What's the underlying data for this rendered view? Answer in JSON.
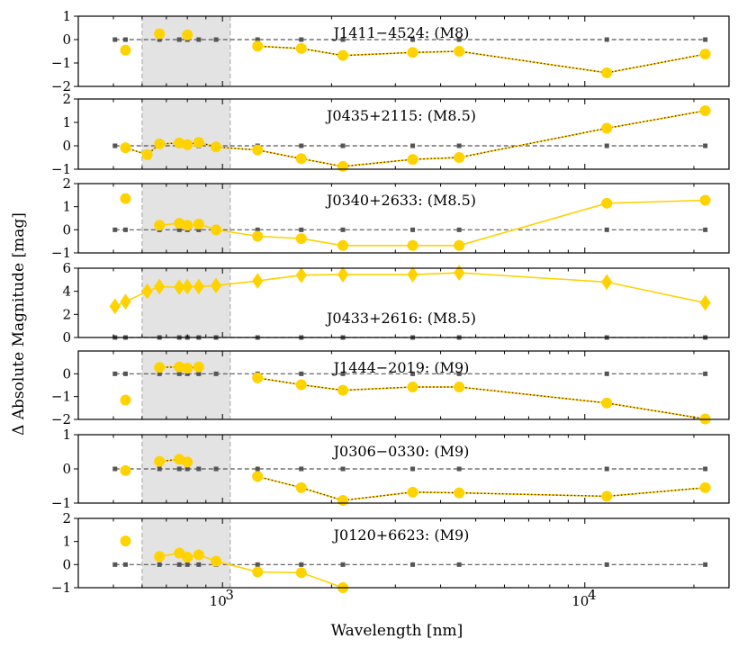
{
  "chart_data": {
    "type": "line",
    "xscale": "log",
    "xlim": [
      400,
      25000
    ],
    "xlabel": "Wavelength [nm]",
    "ylabel": "Δ Absolute Magnitude [mag]",
    "x_ticks": [
      {
        "value": 1000,
        "label": "10",
        "exp": "3"
      },
      {
        "value": 10000,
        "label": "10",
        "exp": "4"
      }
    ],
    "shaded_region": [
      600,
      1050
    ],
    "reference_line": {
      "y": 0,
      "x": [
        505,
        540,
        670,
        760,
        800,
        860,
        960,
        1250,
        1650,
        2150,
        3350,
        4500,
        11500,
        21500
      ]
    },
    "panels": [
      {
        "label": "J1411−4524: (M8)",
        "ylim": [
          -2,
          1
        ],
        "yticks": [
          {
            "v": 1,
            "t": "1"
          },
          {
            "v": 0,
            "t": "0"
          },
          {
            "v": -1,
            "t": "−1"
          },
          {
            "v": -2,
            "t": "−2"
          }
        ],
        "marker": "circle",
        "points": [
          {
            "x": 540,
            "y": -0.45
          },
          {
            "x": 670,
            "y": 0.25
          },
          {
            "x": 800,
            "y": 0.2
          },
          {
            "x": 1250,
            "y": -0.28
          },
          {
            "x": 1650,
            "y": -0.38
          },
          {
            "x": 2150,
            "y": -0.68
          },
          {
            "x": 3350,
            "y": -0.55
          },
          {
            "x": 4500,
            "y": -0.5
          },
          {
            "x": 11500,
            "y": -1.42
          },
          {
            "x": 21500,
            "y": -0.62
          }
        ],
        "lines": [
          {
            "style": "dotted",
            "from": 3,
            "to": 9
          }
        ]
      },
      {
        "label": "J0435+2115: (M8.5)",
        "ylim": [
          -1,
          2
        ],
        "yticks": [
          {
            "v": 2,
            "t": "2"
          },
          {
            "v": 1,
            "t": "1"
          },
          {
            "v": 0,
            "t": "0"
          },
          {
            "v": -1,
            "t": "−1"
          }
        ],
        "marker": "circle",
        "points": [
          {
            "x": 540,
            "y": -0.08
          },
          {
            "x": 620,
            "y": -0.38
          },
          {
            "x": 670,
            "y": 0.08
          },
          {
            "x": 760,
            "y": 0.12
          },
          {
            "x": 800,
            "y": 0.05
          },
          {
            "x": 860,
            "y": 0.15
          },
          {
            "x": 960,
            "y": -0.05
          },
          {
            "x": 1250,
            "y": -0.18
          },
          {
            "x": 1650,
            "y": -0.55
          },
          {
            "x": 2150,
            "y": -0.88
          },
          {
            "x": 3350,
            "y": -0.58
          },
          {
            "x": 4500,
            "y": -0.5
          },
          {
            "x": 11500,
            "y": 0.75
          },
          {
            "x": 21500,
            "y": 1.5
          }
        ],
        "lines": [
          {
            "style": "dotted",
            "from": 0,
            "to": 13
          }
        ]
      },
      {
        "label": "J0340+2633: (M8.5)",
        "ylim": [
          -1,
          2
        ],
        "yticks": [
          {
            "v": 2,
            "t": "2"
          },
          {
            "v": 1,
            "t": "1"
          },
          {
            "v": 0,
            "t": "0"
          },
          {
            "v": -1,
            "t": "−1"
          }
        ],
        "marker": "circle",
        "points": [
          {
            "x": 540,
            "y": 1.35
          },
          {
            "x": 670,
            "y": 0.2
          },
          {
            "x": 760,
            "y": 0.28
          },
          {
            "x": 800,
            "y": 0.2
          },
          {
            "x": 860,
            "y": 0.25
          },
          {
            "x": 960,
            "y": 0.0
          },
          {
            "x": 1250,
            "y": -0.28
          },
          {
            "x": 1650,
            "y": -0.38
          },
          {
            "x": 2150,
            "y": -0.68
          },
          {
            "x": 3350,
            "y": -0.68
          },
          {
            "x": 4500,
            "y": -0.68
          },
          {
            "x": 11500,
            "y": 1.15
          },
          {
            "x": 21500,
            "y": 1.28
          }
        ],
        "lines": [
          {
            "style": "solid",
            "from": 1,
            "to": 12
          }
        ]
      },
      {
        "label": "J0433+2616: (M8.5)",
        "ylim": [
          0,
          6
        ],
        "yticks": [
          {
            "v": 6,
            "t": "6"
          },
          {
            "v": 4,
            "t": "4"
          },
          {
            "v": 2,
            "t": "2"
          },
          {
            "v": 0,
            "t": "0"
          }
        ],
        "marker": "diamond",
        "points": [
          {
            "x": 505,
            "y": 2.7
          },
          {
            "x": 540,
            "y": 3.1
          },
          {
            "x": 620,
            "y": 4.0
          },
          {
            "x": 670,
            "y": 4.4
          },
          {
            "x": 760,
            "y": 4.35
          },
          {
            "x": 800,
            "y": 4.4
          },
          {
            "x": 860,
            "y": 4.4
          },
          {
            "x": 960,
            "y": 4.5
          },
          {
            "x": 1250,
            "y": 4.9
          },
          {
            "x": 1650,
            "y": 5.4
          },
          {
            "x": 2150,
            "y": 5.45
          },
          {
            "x": 3350,
            "y": 5.45
          },
          {
            "x": 4500,
            "y": 5.6
          },
          {
            "x": 11500,
            "y": 4.8
          },
          {
            "x": 21500,
            "y": 3.0
          }
        ],
        "lines": [
          {
            "style": "solid",
            "from": 0,
            "to": 14
          }
        ]
      },
      {
        "label": "J1444−2019: (M9)",
        "ylim": [
          -2,
          1
        ],
        "yticks": [
          {
            "v": 0,
            "t": "0"
          },
          {
            "v": -1,
            "t": "−1"
          },
          {
            "v": -2,
            "t": "−2"
          }
        ],
        "marker": "circle",
        "points": [
          {
            "x": 540,
            "y": -1.15
          },
          {
            "x": 670,
            "y": 0.28
          },
          {
            "x": 760,
            "y": 0.3
          },
          {
            "x": 800,
            "y": 0.25
          },
          {
            "x": 860,
            "y": 0.3
          },
          {
            "x": 1250,
            "y": -0.18
          },
          {
            "x": 1650,
            "y": -0.48
          },
          {
            "x": 2150,
            "y": -0.72
          },
          {
            "x": 3350,
            "y": -0.58
          },
          {
            "x": 4500,
            "y": -0.58
          },
          {
            "x": 11500,
            "y": -1.28
          },
          {
            "x": 21500,
            "y": -1.98
          }
        ],
        "lines": [
          {
            "style": "dotted",
            "from": 1,
            "to": 4
          },
          {
            "style": "dotted",
            "from": 5,
            "to": 11
          }
        ]
      },
      {
        "label": "J0306−0330: (M9)",
        "ylim": [
          -1,
          1
        ],
        "yticks": [
          {
            "v": 1,
            "t": "1"
          },
          {
            "v": 0,
            "t": "0"
          },
          {
            "v": -1,
            "t": "−1"
          }
        ],
        "marker": "circle",
        "points": [
          {
            "x": 540,
            "y": -0.05
          },
          {
            "x": 670,
            "y": 0.22
          },
          {
            "x": 760,
            "y": 0.28
          },
          {
            "x": 800,
            "y": 0.2
          },
          {
            "x": 1250,
            "y": -0.22
          },
          {
            "x": 1650,
            "y": -0.55
          },
          {
            "x": 2150,
            "y": -0.92
          },
          {
            "x": 3350,
            "y": -0.68
          },
          {
            "x": 4500,
            "y": -0.7
          },
          {
            "x": 11500,
            "y": -0.8
          },
          {
            "x": 21500,
            "y": -0.55
          }
        ],
        "lines": [
          {
            "style": "dotted",
            "from": 1,
            "to": 3
          },
          {
            "style": "dotted",
            "from": 4,
            "to": 10
          }
        ]
      },
      {
        "label": "J0120+6623: (M9)",
        "ylim": [
          -1,
          2
        ],
        "yticks": [
          {
            "v": 2,
            "t": "2"
          },
          {
            "v": 1,
            "t": "1"
          },
          {
            "v": 0,
            "t": "0"
          },
          {
            "v": -1,
            "t": "−1"
          }
        ],
        "marker": "circle",
        "points": [
          {
            "x": 540,
            "y": 1.02
          },
          {
            "x": 670,
            "y": 0.35
          },
          {
            "x": 760,
            "y": 0.5
          },
          {
            "x": 800,
            "y": 0.32
          },
          {
            "x": 860,
            "y": 0.42
          },
          {
            "x": 960,
            "y": 0.15
          },
          {
            "x": 1250,
            "y": -0.32
          },
          {
            "x": 1650,
            "y": -0.35
          },
          {
            "x": 2150,
            "y": -1.0
          }
        ],
        "lines": [
          {
            "style": "solid",
            "from": 1,
            "to": 8
          }
        ]
      }
    ]
  }
}
